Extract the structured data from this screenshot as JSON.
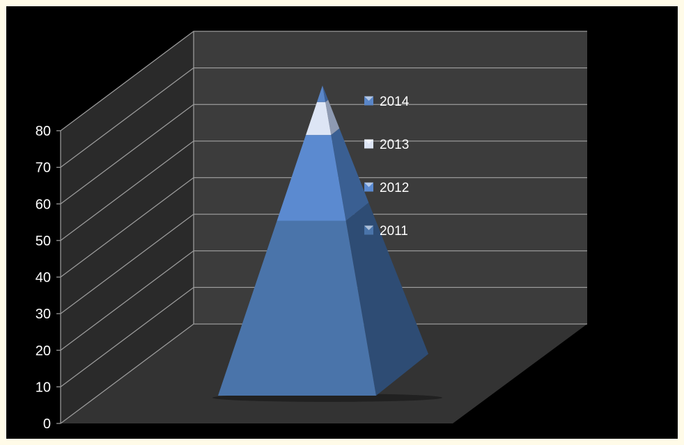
{
  "chart_data": {
    "type": "pyramid",
    "series": [
      {
        "name": "2011",
        "value": 53
      },
      {
        "name": "2012",
        "value": 26
      },
      {
        "name": "2013",
        "value": 10
      },
      {
        "name": "2014",
        "value": 5
      }
    ],
    "legend_order": [
      "2014",
      "2013",
      "2012",
      "2011"
    ],
    "legend_position": "right",
    "y_ticks": [
      0,
      10,
      20,
      30,
      40,
      50,
      60,
      70,
      80
    ],
    "ylim": [
      0,
      80
    ],
    "grid": true,
    "colors": {
      "2011": "#4a74aa",
      "2012": "#5b8ad0",
      "2013": "#dde5f5",
      "2014": "#5a86c8",
      "background": "#000000",
      "back_wall": "#3c3c3c",
      "side_wall": "#2a2a2a",
      "floor": "#333333",
      "gridline": "#9a9a9a"
    }
  }
}
